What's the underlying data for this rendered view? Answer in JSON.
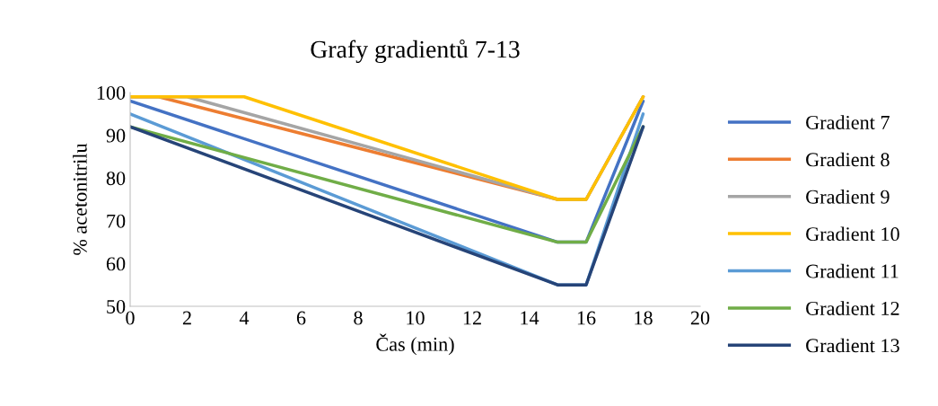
{
  "chart_data": {
    "type": "line",
    "title": "Grafy gradientů 7-13",
    "xlabel": "Čas (min)",
    "ylabel": "% acetonitrilu",
    "xlim": [
      0,
      20
    ],
    "xticks": [
      0,
      2,
      4,
      6,
      8,
      10,
      12,
      14,
      16,
      18,
      20
    ],
    "ylim": [
      50,
      100
    ],
    "yticks": [
      50,
      60,
      70,
      80,
      90,
      100
    ],
    "grid": false,
    "legend": "right",
    "marker": "none",
    "line_style": "solid",
    "series": [
      {
        "name": "Gradient 7",
        "color": "#4472c4",
        "x": [
          0,
          15,
          16,
          18
        ],
        "values": [
          98,
          65,
          65,
          98
        ]
      },
      {
        "name": "Gradient 8",
        "color": "#ed7d31",
        "x": [
          0,
          1,
          15,
          16,
          18
        ],
        "values": [
          99,
          99,
          75,
          75,
          99
        ]
      },
      {
        "name": "Gradient 9",
        "color": "#a5a5a5",
        "x": [
          0,
          2,
          15,
          16,
          18
        ],
        "values": [
          99,
          99,
          75,
          75,
          99
        ]
      },
      {
        "name": "Gradient 10",
        "color": "#ffc000",
        "x": [
          0,
          4,
          15,
          16,
          18
        ],
        "values": [
          99,
          99,
          75,
          75,
          99
        ]
      },
      {
        "name": "Gradient 11",
        "color": "#5b9bd5",
        "x": [
          0,
          15,
          16,
          18
        ],
        "values": [
          95,
          55,
          55,
          95
        ]
      },
      {
        "name": "Gradient 12",
        "color": "#70ad47",
        "x": [
          0,
          15,
          16,
          18
        ],
        "values": [
          92,
          65,
          65,
          92
        ]
      },
      {
        "name": "Gradient 13",
        "color": "#264478",
        "x": [
          0,
          15,
          16,
          18
        ],
        "values": [
          92,
          55,
          55,
          92
        ]
      }
    ]
  }
}
